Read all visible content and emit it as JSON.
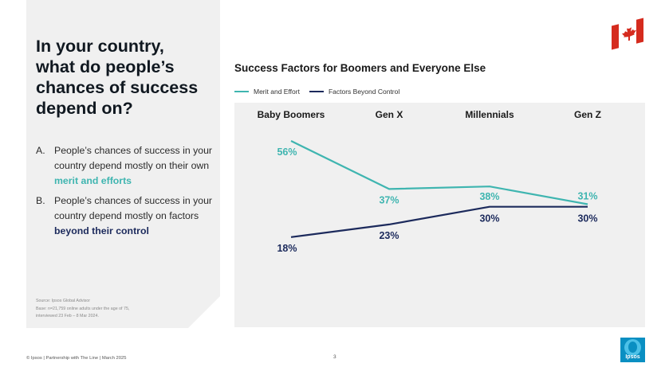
{
  "question": {
    "line1": "In your country,",
    "line2": "what do people’s",
    "line3": "chances of success",
    "line4": "depend on?"
  },
  "options": [
    {
      "letter": "A.",
      "text": "People’s chances of success in your country depend mostly on their own ",
      "highlight": "merit and efforts"
    },
    {
      "letter": "B.",
      "text": "People’s chances of success in your country depend mostly on factors ",
      "highlight": "beyond their control"
    }
  ],
  "source": {
    "line1": "Source: Ipsos Global Advisor",
    "line2": "Base: n=21,759 online adults under the age of 75,",
    "line3": "interviewed 23 Feb – 8 Mar 2024."
  },
  "colors": {
    "teal": "#3fb5b0",
    "navy": "#1c2a5c",
    "panel": "#f0f0f0",
    "flag_red": "#d52b1e"
  },
  "icons": {
    "flag": "canada-flag-icon",
    "logo": "ipsos-logo"
  },
  "chart_data": {
    "type": "line",
    "title": "Success Factors for Boomers and Everyone Else",
    "categories": [
      "Baby Boomers",
      "Gen X",
      "Millennials",
      "Gen Z"
    ],
    "series": [
      {
        "name": "Merit and Effort",
        "color": "#3fb5b0",
        "values": [
          56,
          37,
          38,
          31
        ],
        "labels": [
          "56%",
          "37%",
          "38%",
          "31%"
        ]
      },
      {
        "name": "Factors Beyond Control",
        "color": "#1c2a5c",
        "values": [
          18,
          23,
          30,
          30
        ],
        "labels": [
          "18%",
          "23%",
          "30%",
          "30%"
        ]
      }
    ],
    "legend_position": "top-left",
    "grid": false
  },
  "footer": {
    "left": "© Ipsos | Partnership with The Line | March 2025",
    "page": "3",
    "logo_text": "Ipsos"
  }
}
